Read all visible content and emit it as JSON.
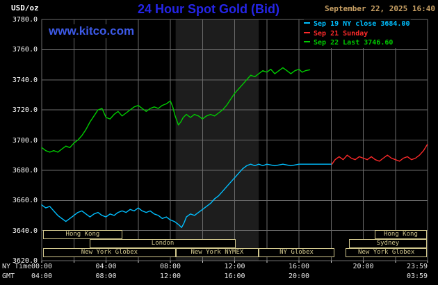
{
  "header": {
    "units_label": "USD/oz",
    "title": "24 Hour Spot Gold (Bid)",
    "datetime": "September 22, 2025 16:40",
    "watermark": "www.kitco.com"
  },
  "colors": {
    "background": "#000000",
    "title_blue": "#2525e8",
    "watermark_blue": "#3d5ae8",
    "date_tan": "#c8a064",
    "session_khaki": "#d2c88e",
    "grid_gray": "#6b6b6b",
    "axis_text": "#e4e4e4",
    "sep19_cyan": "#00bfff",
    "sep21_red": "#ff2a2a",
    "sep22_green": "#00cc00"
  },
  "legend": [
    {
      "label": "Sep 19 NY close 3684.00",
      "color": "#00bfff",
      "slug": "sep-19-ny-close"
    },
    {
      "label": "Sep 21 Sunday",
      "color": "#ff2a2a",
      "slug": "sep-21-sunday"
    },
    {
      "label": "Sep 22 Last 3746.60",
      "color": "#00cc00",
      "slug": "sep-22-last"
    }
  ],
  "axes": {
    "ny_prefix": "NY Time",
    "gmt_prefix": "GMT",
    "y_ticks": [
      {
        "value": 3780,
        "label": "3780.0"
      },
      {
        "value": 3760,
        "label": "3760.0"
      },
      {
        "value": 3740,
        "label": "3740.0"
      },
      {
        "value": 3720,
        "label": "3720.0"
      },
      {
        "value": 3700,
        "label": "3700.0"
      },
      {
        "value": 3680,
        "label": "3680.0"
      },
      {
        "value": 3660,
        "label": "3660.0"
      },
      {
        "value": 3640,
        "label": "3640.0"
      },
      {
        "value": 3620,
        "label": "3620.0"
      }
    ],
    "ny_ticks": [
      {
        "hour": 0,
        "label": "00:00"
      },
      {
        "hour": 4,
        "label": "04:00"
      },
      {
        "hour": 8,
        "label": "08:00"
      },
      {
        "hour": 12,
        "label": "12:00"
      },
      {
        "hour": 16,
        "label": "16:00"
      },
      {
        "hour": 20,
        "label": "20:00"
      },
      {
        "hour": 24,
        "label": "23:59"
      }
    ],
    "gmt_ticks": [
      {
        "hour": 0,
        "label": "04:00"
      },
      {
        "hour": 4,
        "label": "08:00"
      },
      {
        "hour": 8,
        "label": "12:00"
      },
      {
        "hour": 12,
        "label": "16:00"
      },
      {
        "hour": 16,
        "label": "20:00"
      },
      {
        "hour": 24,
        "label": "03:59"
      }
    ]
  },
  "sessions": [
    {
      "label": "Hong Kong",
      "row": 1,
      "from": 0.1,
      "to": 5.0
    },
    {
      "label": "Hong Kong",
      "row": 1,
      "from": 20.7,
      "to": 23.97
    },
    {
      "label": "London",
      "row": 2,
      "from": 3.0,
      "to": 12.05
    },
    {
      "label": "Sydney",
      "row": 2,
      "from": 19.1,
      "to": 23.97
    },
    {
      "label": "New York Globex",
      "row": 3,
      "from": 0.1,
      "to": 8.33
    },
    {
      "label": "New York NYMEX",
      "row": 3,
      "from": 8.33,
      "to": 13.5
    },
    {
      "label": "NY Globex",
      "row": 3,
      "from": 13.5,
      "to": 18.2
    },
    {
      "label": "New York Globex",
      "row": 3,
      "from": 18.9,
      "to": 23.97
    }
  ],
  "chart_data": {
    "type": "line",
    "title": "24 Hour Spot Gold (Bid)",
    "ylabel": "USD/oz",
    "xlabel": "NY Time (hours)",
    "xlim": [
      0,
      24
    ],
    "ylim": [
      3620,
      3780
    ],
    "grid": {
      "step_x_hours": 2,
      "step_y": 20,
      "color": "#6b6b6b"
    },
    "legend_position": "top-right",
    "bands": [
      {
        "name": "nymex-floor-session",
        "from": 8.33,
        "to": 13.5,
        "color": "#1d1d1d"
      }
    ],
    "series": [
      {
        "name": "Sep 19 NY close 3684.00",
        "slug": "sep-19",
        "color": "#00bfff",
        "close": 3684.0,
        "x": [
          0,
          0.25,
          0.5,
          0.75,
          1,
          1.25,
          1.5,
          1.75,
          2,
          2.25,
          2.5,
          2.75,
          3,
          3.25,
          3.5,
          3.75,
          4,
          4.25,
          4.5,
          4.75,
          5,
          5.25,
          5.5,
          5.75,
          6,
          6.25,
          6.5,
          6.75,
          7,
          7.25,
          7.5,
          7.75,
          8,
          8.25,
          8.5,
          8.7,
          8.85,
          9,
          9.25,
          9.5,
          9.75,
          10,
          10.25,
          10.5,
          10.75,
          11,
          11.25,
          11.5,
          11.75,
          12,
          12.25,
          12.5,
          12.75,
          13,
          13.25,
          13.5,
          13.75,
          14,
          14.5,
          15,
          15.5,
          16,
          16.5,
          17,
          17.5,
          18
        ],
        "values": [
          3657,
          3655,
          3656,
          3653,
          3650,
          3648,
          3646,
          3648,
          3650,
          3652,
          3653,
          3651,
          3649,
          3651,
          3652,
          3650,
          3649,
          3651,
          3650,
          3652,
          3653,
          3652,
          3654,
          3653,
          3655,
          3653,
          3652,
          3653,
          3651,
          3650,
          3648,
          3649,
          3647,
          3646,
          3644,
          3642,
          3645,
          3649,
          3651,
          3650,
          3652,
          3654,
          3656,
          3658,
          3661,
          3663,
          3666,
          3669,
          3672,
          3675,
          3678,
          3681,
          3683,
          3684,
          3683,
          3684,
          3683,
          3684,
          3683,
          3684,
          3683,
          3684,
          3684,
          3684,
          3684,
          3684
        ]
      },
      {
        "name": "Sep 21 Sunday",
        "slug": "sep-21",
        "color": "#ff2a2a",
        "x": [
          18.05,
          18.25,
          18.5,
          18.75,
          19,
          19.25,
          19.5,
          19.75,
          20,
          20.25,
          20.5,
          20.75,
          21,
          21.25,
          21.5,
          21.75,
          22,
          22.25,
          22.5,
          22.75,
          23,
          23.25,
          23.5,
          23.75,
          23.98
        ],
        "values": [
          3684,
          3687,
          3689,
          3687,
          3690,
          3688,
          3687,
          3689,
          3688,
          3687,
          3689,
          3687,
          3686,
          3688,
          3690,
          3688,
          3687,
          3686,
          3688,
          3689,
          3687,
          3688,
          3690,
          3693,
          3697
        ]
      },
      {
        "name": "Sep 22 Last 3746.60",
        "slug": "sep-22",
        "color": "#00cc00",
        "last": 3746.6,
        "x": [
          0,
          0.25,
          0.5,
          0.75,
          1,
          1.25,
          1.5,
          1.75,
          2,
          2.25,
          2.5,
          2.75,
          3,
          3.25,
          3.5,
          3.75,
          4,
          4.25,
          4.5,
          4.75,
          5,
          5.25,
          5.5,
          5.75,
          6,
          6.25,
          6.5,
          6.75,
          7,
          7.25,
          7.5,
          7.75,
          8,
          8.15,
          8.3,
          8.5,
          8.65,
          8.8,
          9,
          9.25,
          9.5,
          9.75,
          10,
          10.25,
          10.5,
          10.75,
          11,
          11.25,
          11.5,
          11.75,
          12,
          12.25,
          12.5,
          12.75,
          13,
          13.25,
          13.5,
          13.75,
          14,
          14.25,
          14.5,
          14.75,
          15,
          15.25,
          15.5,
          15.75,
          16,
          16.2,
          16.4,
          16.67
        ],
        "values": [
          3695,
          3693,
          3692,
          3693,
          3692,
          3694,
          3696,
          3695,
          3698,
          3700,
          3703,
          3707,
          3712,
          3716,
          3720,
          3721,
          3715,
          3714,
          3717,
          3719,
          3716,
          3718,
          3720,
          3722,
          3723,
          3721,
          3719,
          3721,
          3722,
          3721,
          3723,
          3724,
          3726,
          3722,
          3716,
          3710,
          3712,
          3715,
          3717,
          3715,
          3717,
          3716,
          3714,
          3716,
          3717,
          3716,
          3718,
          3720,
          3723,
          3727,
          3731,
          3734,
          3737,
          3740,
          3743,
          3742,
          3744,
          3746,
          3745,
          3747,
          3744,
          3746,
          3748,
          3746,
          3744,
          3746,
          3747,
          3745,
          3746,
          3746.6
        ]
      }
    ]
  }
}
